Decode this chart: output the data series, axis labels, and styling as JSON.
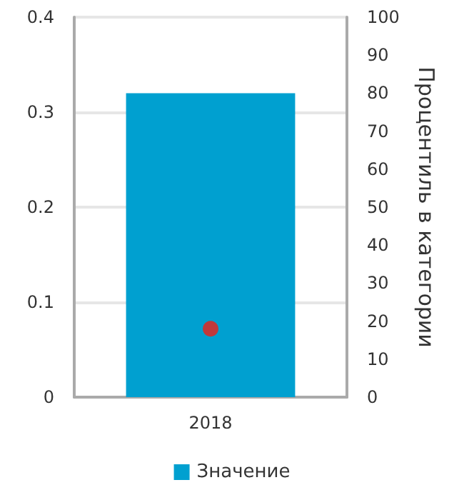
{
  "chart_data": {
    "type": "bar",
    "categories": [
      "2018"
    ],
    "series": [
      {
        "name": "Значение",
        "color": "#00a0d0",
        "values": [
          0.32
        ]
      },
      {
        "type": "scatter",
        "axis": "y2",
        "color": "#c0393b",
        "values": [
          18
        ]
      }
    ],
    "ylim": [
      0,
      0.4
    ],
    "yticks": [
      0,
      0.1,
      0.2,
      0.3,
      0.4
    ],
    "y2lim": [
      0,
      100
    ],
    "y2ticks": [
      0,
      10,
      20,
      30,
      40,
      50,
      60,
      70,
      80,
      90,
      100
    ],
    "y2label": "Процентиль в категории",
    "grid": "y",
    "legend": "bottom",
    "marker": "circle"
  }
}
